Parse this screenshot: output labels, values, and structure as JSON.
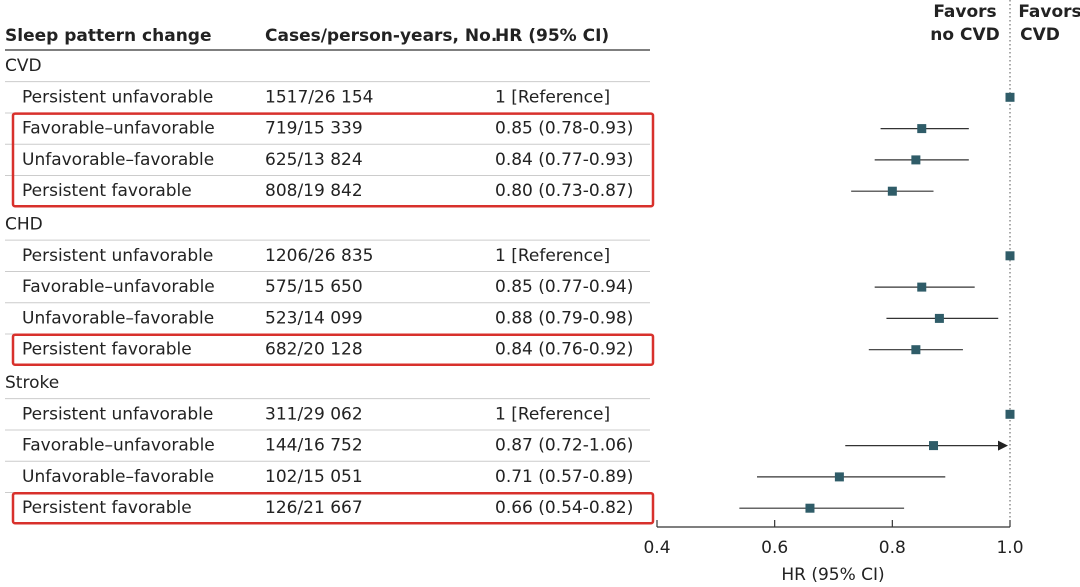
{
  "chart_data": {
    "type": "forest",
    "columns": [
      "Sleep pattern change",
      "Cases/person-years, No.",
      "HR (95% CI)"
    ],
    "favors_left": [
      "Favors",
      "no CVD"
    ],
    "favors_right": [
      "Favors",
      "CVD"
    ],
    "xlabel": "HR (95% CI)",
    "xlim": [
      0.4,
      1.0
    ],
    "xticks": [
      0.4,
      0.6,
      0.8,
      {
        "value": 1,
        "label": "1.0"
      }
    ],
    "marker_color": "#2f5c68",
    "highlight_color": "#d8312c",
    "groups": [
      {
        "name": "CVD",
        "rows": [
          {
            "label": "Persistent unfavorable",
            "cases": "1517/26 154",
            "value_label": "1 [Reference]",
            "hr": 1,
            "ci": null,
            "highlighted": false
          },
          {
            "label": "Favorable–unfavorable",
            "cases": "719/15 339",
            "value_label": "0.85 (0.78-0.93)",
            "hr": 0.85,
            "ci": [
              0.78,
              0.93
            ],
            "highlighted": true
          },
          {
            "label": "Unfavorable–favorable",
            "cases": "625/13 824",
            "value_label": "0.84 (0.77-0.93)",
            "hr": 0.84,
            "ci": [
              0.77,
              0.93
            ],
            "highlighted": true
          },
          {
            "label": "Persistent favorable",
            "cases": "808/19 842",
            "value_label": "0.80 (0.73-0.87)",
            "hr": 0.8,
            "ci": [
              0.73,
              0.87
            ],
            "highlighted": true
          }
        ]
      },
      {
        "name": "CHD",
        "rows": [
          {
            "label": "Persistent unfavorable",
            "cases": "1206/26 835",
            "value_label": "1 [Reference]",
            "hr": 1,
            "ci": null,
            "highlighted": false
          },
          {
            "label": "Favorable–unfavorable",
            "cases": "575/15 650",
            "value_label": "0.85 (0.77-0.94)",
            "hr": 0.85,
            "ci": [
              0.77,
              0.94
            ],
            "highlighted": false
          },
          {
            "label": "Unfavorable–favorable",
            "cases": "523/14 099",
            "value_label": "0.88 (0.79-0.98)",
            "hr": 0.88,
            "ci": [
              0.79,
              0.98
            ],
            "highlighted": false
          },
          {
            "label": "Persistent favorable",
            "cases": "682/20 128",
            "value_label": "0.84 (0.76-0.92)",
            "hr": 0.84,
            "ci": [
              0.76,
              0.92
            ],
            "highlighted": true
          }
        ]
      },
      {
        "name": "Stroke",
        "rows": [
          {
            "label": "Persistent unfavorable",
            "cases": "311/29 062",
            "value_label": "1 [Reference]",
            "hr": 1,
            "ci": null,
            "highlighted": false
          },
          {
            "label": "Favorable–unfavorable",
            "cases": "144/16 752",
            "value_label": "0.87 (0.72-1.06)",
            "hr": 0.87,
            "ci": [
              0.72,
              1.06
            ],
            "highlighted": false
          },
          {
            "label": "Unfavorable–favorable",
            "cases": "102/15 051",
            "value_label": "0.71 (0.57-0.89)",
            "hr": 0.71,
            "ci": [
              0.57,
              0.89
            ],
            "highlighted": false
          },
          {
            "label": "Persistent favorable",
            "cases": "126/21 667",
            "value_label": "0.66 (0.54-0.82)",
            "hr": 0.66,
            "ci": [
              0.54,
              0.82
            ],
            "highlighted": true
          }
        ]
      }
    ]
  }
}
